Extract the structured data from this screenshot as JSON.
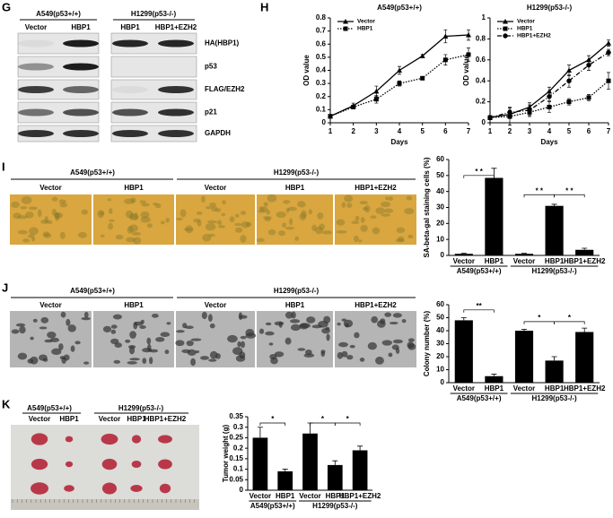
{
  "panels": {
    "G": {
      "letter": "G",
      "groups": [
        "A549(p53+/+)",
        "H1299(p53-/-)"
      ],
      "lanes": [
        "Vector",
        "HBP1",
        "HBP1",
        "HBP1+EZH2"
      ],
      "rows": [
        "HA(HBP1)",
        "p53",
        "FLAG/EZH2",
        "p21",
        "GAPDH"
      ]
    },
    "H": {
      "letter": "H"
    },
    "I": {
      "letter": "I",
      "groups": [
        "A549(p53+/+)",
        "H1299(p53-/-)"
      ],
      "lanes": [
        "Vector",
        "HBP1",
        "Vector",
        "HBP1",
        "HBP1+EZH2"
      ]
    },
    "J": {
      "letter": "J",
      "groups": [
        "A549(p53+/+)",
        "H1299(p53-/-)"
      ],
      "lanes": [
        "Vector",
        "HBP1",
        "Vector",
        "HBP1",
        "HBP1+EZH2"
      ]
    },
    "K": {
      "letter": "K",
      "groups": [
        "A549(p53+/+)",
        "H1299(p53-/-)"
      ],
      "lanes": [
        "Vector",
        "HBP1",
        "Vector",
        "HBP1",
        "HBP1+EZH2"
      ]
    }
  },
  "chart_data": [
    {
      "type": "line",
      "title": "A549(p53+/+)",
      "x_label": "Days",
      "y_label": "OD value",
      "x": [
        1,
        2,
        3,
        4,
        5,
        6,
        7
      ],
      "xlim": [
        1,
        7
      ],
      "xticks": [
        1,
        2,
        3,
        4,
        5,
        6,
        7
      ],
      "ylim": [
        0,
        0.8
      ],
      "yticks": [
        0,
        0.1,
        0.2,
        0.3,
        0.4,
        0.5,
        0.6,
        0.7,
        0.8
      ],
      "legend": "upper left",
      "series": [
        {
          "name": "Vector",
          "color": "#000000",
          "marker": "triangle",
          "line_style": "solid",
          "values": [
            0.05,
            0.13,
            0.24,
            0.4,
            0.51,
            0.66,
            0.67
          ],
          "errors": [
            0.01,
            0.02,
            0.04,
            0.03,
            0.01,
            0.05,
            0.04
          ]
        },
        {
          "name": "HBP1",
          "color": "#000000",
          "marker": "square",
          "line_style": "dotted",
          "values": [
            0.05,
            0.12,
            0.18,
            0.3,
            0.34,
            0.48,
            0.52
          ],
          "errors": [
            0.01,
            0.01,
            0.03,
            0.02,
            0.01,
            0.04,
            0.05
          ]
        }
      ]
    },
    {
      "type": "line",
      "title": "H1299(p53-/-)",
      "x_label": "Days",
      "y_label": "OD value",
      "x": [
        1,
        2,
        3,
        4,
        5,
        6,
        7
      ],
      "xlim": [
        1,
        7
      ],
      "xticks": [
        1,
        2,
        3,
        4,
        5,
        6,
        7
      ],
      "ylim": [
        0,
        1
      ],
      "yticks": [
        0,
        0.2,
        0.4,
        0.6,
        0.8,
        1
      ],
      "legend": "upper left",
      "series": [
        {
          "name": "Vector",
          "color": "#000000",
          "marker": "triangle",
          "line_style": "solid",
          "values": [
            0.05,
            0.08,
            0.15,
            0.3,
            0.5,
            0.6,
            0.76
          ],
          "errors": [
            0.02,
            0.04,
            0.04,
            0.04,
            0.05,
            0.04,
            0.03
          ]
        },
        {
          "name": "HBP1",
          "color": "#000000",
          "marker": "square",
          "line_style": "dotted",
          "values": [
            0.05,
            0.06,
            0.1,
            0.15,
            0.2,
            0.24,
            0.4
          ],
          "errors": [
            0.02,
            0.08,
            0.04,
            0.05,
            0.03,
            0.03,
            0.08
          ]
        },
        {
          "name": "HBP1+EZH2",
          "color": "#000000",
          "marker": "circle",
          "line_style": "dashdot",
          "values": [
            0.05,
            0.1,
            0.12,
            0.25,
            0.4,
            0.55,
            0.67
          ],
          "errors": [
            0.02,
            0.05,
            0.05,
            0.04,
            0.06,
            0.05,
            0.03
          ]
        }
      ]
    },
    {
      "type": "bar",
      "y_label": "SA-beta-gal staining cells (%)",
      "categories": [
        "Vector",
        "HBP1",
        "Vector",
        "HBP1",
        "HBP1+EZH2"
      ],
      "groups": [
        "A549(p53+/+)",
        "H1299(p53-/-)"
      ],
      "values": [
        1,
        48.5,
        1,
        31,
        3.5
      ],
      "errors": [
        0.3,
        6,
        0.3,
        1,
        1
      ],
      "color": "#000000",
      "ylim": [
        0,
        60
      ],
      "yticks": [
        0,
        10,
        20,
        30,
        40,
        50,
        60
      ],
      "annotations": [
        "* *",
        "* *",
        "* *"
      ]
    },
    {
      "type": "bar",
      "y_label": "Colony number (%)",
      "categories": [
        "Vector",
        "HBP1",
        "Vector",
        "HBP1",
        "HBP1+EZH2"
      ],
      "groups": [
        "A549(p53+/+)",
        "H1299(p53-/-)"
      ],
      "values": [
        48,
        5,
        40,
        17,
        39
      ],
      "errors": [
        2,
        1.5,
        1,
        3,
        3
      ],
      "color": "#000000",
      "ylim": [
        0,
        60
      ],
      "yticks": [
        0,
        10,
        20,
        30,
        40,
        50,
        60
      ],
      "annotations": [
        "**",
        "*",
        "*"
      ]
    },
    {
      "type": "bar",
      "y_label": "Tumor weight (g)",
      "categories": [
        "Vector",
        "HBP1",
        "Vector",
        "HBP1",
        "HBP1+EZH2"
      ],
      "groups": [
        "A549(p53+/+)",
        "H1299(p53-/-)"
      ],
      "values": [
        0.25,
        0.09,
        0.27,
        0.12,
        0.19
      ],
      "errors": [
        0.05,
        0.01,
        0.05,
        0.02,
        0.02
      ],
      "color": "#000000",
      "ylim": [
        0,
        0.35
      ],
      "yticks": [
        0,
        0.05,
        0.1,
        0.15,
        0.2,
        0.25,
        0.3,
        0.35
      ],
      "annotations": [
        "*",
        "*",
        "*"
      ]
    }
  ]
}
